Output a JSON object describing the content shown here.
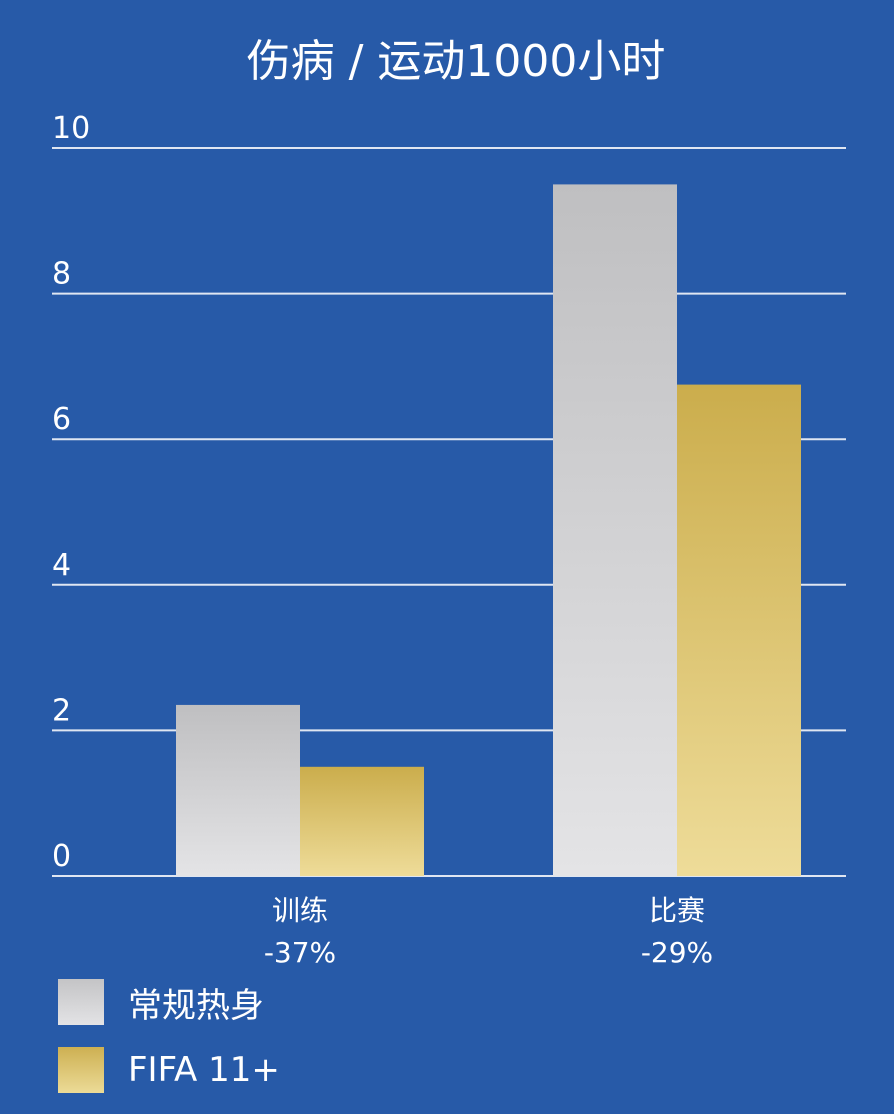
{
  "chart_data": {
    "type": "bar",
    "title": "伤病 / 运动1000小时",
    "categories": [
      "训练",
      "比赛"
    ],
    "category_changes": [
      "-37%",
      "-29%"
    ],
    "series": [
      {
        "name": "常规热身",
        "values": [
          2.35,
          9.5
        ],
        "color": "#d6d6d8"
      },
      {
        "name": "FIFA 11+",
        "values": [
          1.5,
          6.75
        ],
        "color": "#d9c06a"
      }
    ],
    "yticks": [
      "0",
      "2",
      "4",
      "6",
      "8",
      "10"
    ],
    "ylim": [
      0,
      10
    ],
    "grid": true,
    "legend": "bottom-left"
  }
}
